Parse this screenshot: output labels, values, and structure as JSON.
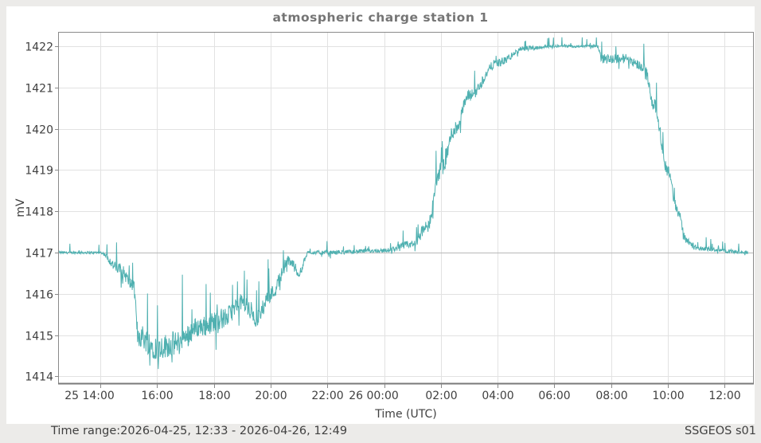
{
  "window": {
    "background": "#ecebe9",
    "panel_background": "#ffffff"
  },
  "chart": {
    "title": "atmospheric charge station 1",
    "xlabel": "Time (UTC)",
    "ylabel": "mV",
    "line_color": "#4fb0b0",
    "grid_color": "#e2e2e2",
    "reference_line_color": "#b8b8b8"
  },
  "footer": {
    "time_range": "Time range:2026-04-25, 12:33 - 2026-04-26, 12:49",
    "station": "SSGEOS s01"
  },
  "chart_data": {
    "type": "line",
    "title": "atmospheric charge station 1",
    "xlabel": "Time (UTC)",
    "ylabel": "mV",
    "x_range": [
      "2026-04-25 12:33",
      "2026-04-26 12:49"
    ],
    "x_tick_labels": [
      "25 14:00",
      "16:00",
      "18:00",
      "20:00",
      "22:00",
      "26 00:00",
      "02:00",
      "04:00",
      "06:00",
      "08:00",
      "10:00",
      "12:00"
    ],
    "x_tick_hours": [
      14,
      16,
      18,
      20,
      22,
      24,
      26,
      28,
      30,
      32,
      34,
      36
    ],
    "y_tick_labels": [
      "1414",
      "1415",
      "1416",
      "1417",
      "1418",
      "1419",
      "1420",
      "1421",
      "1422"
    ],
    "y_ticks": [
      1414,
      1415,
      1416,
      1417,
      1418,
      1419,
      1420,
      1421,
      1422
    ],
    "ylim": [
      1413.8,
      1422.35
    ],
    "xlim_hours": [
      12.55,
      36.82
    ],
    "grid": true,
    "legend": "none",
    "series": [
      {
        "name": "atmospheric charge station 1",
        "color": "#4fb0b0",
        "x_hours": [
          12.55,
          14.0,
          14.67,
          15.17,
          15.33,
          16.0,
          16.67,
          17.5,
          18.33,
          19.0,
          19.5,
          20.0,
          20.67,
          21.0,
          21.33,
          22.0,
          24.0,
          25.0,
          25.5,
          26.0,
          26.5,
          27.0,
          28.0,
          29.0,
          30.0,
          31.5,
          31.67,
          32.5,
          33.17,
          33.5,
          34.0,
          34.33,
          34.67,
          35.0,
          36.82
        ],
        "values": [
          1417.0,
          1417.0,
          1416.6,
          1416.2,
          1415.0,
          1414.7,
          1414.8,
          1415.2,
          1415.4,
          1415.8,
          1415.4,
          1416.0,
          1416.8,
          1416.5,
          1417.0,
          1417.0,
          1417.05,
          1417.2,
          1417.6,
          1419.0,
          1420.0,
          1420.8,
          1421.6,
          1421.95,
          1422.0,
          1422.0,
          1421.7,
          1421.7,
          1421.5,
          1420.6,
          1419.0,
          1418.0,
          1417.3,
          1417.1,
          1417.0
        ],
        "noise_mV": [
          0.03,
          0.03,
          0.15,
          0.15,
          0.3,
          0.3,
          0.3,
          0.25,
          0.25,
          0.2,
          0.2,
          0.2,
          0.15,
          0.1,
          0.04,
          0.05,
          0.05,
          0.1,
          0.15,
          0.2,
          0.2,
          0.15,
          0.1,
          0.06,
          0.03,
          0.03,
          0.12,
          0.12,
          0.12,
          0.15,
          0.15,
          0.12,
          0.1,
          0.05,
          0.04
        ]
      }
    ],
    "reference_line": 1417
  }
}
